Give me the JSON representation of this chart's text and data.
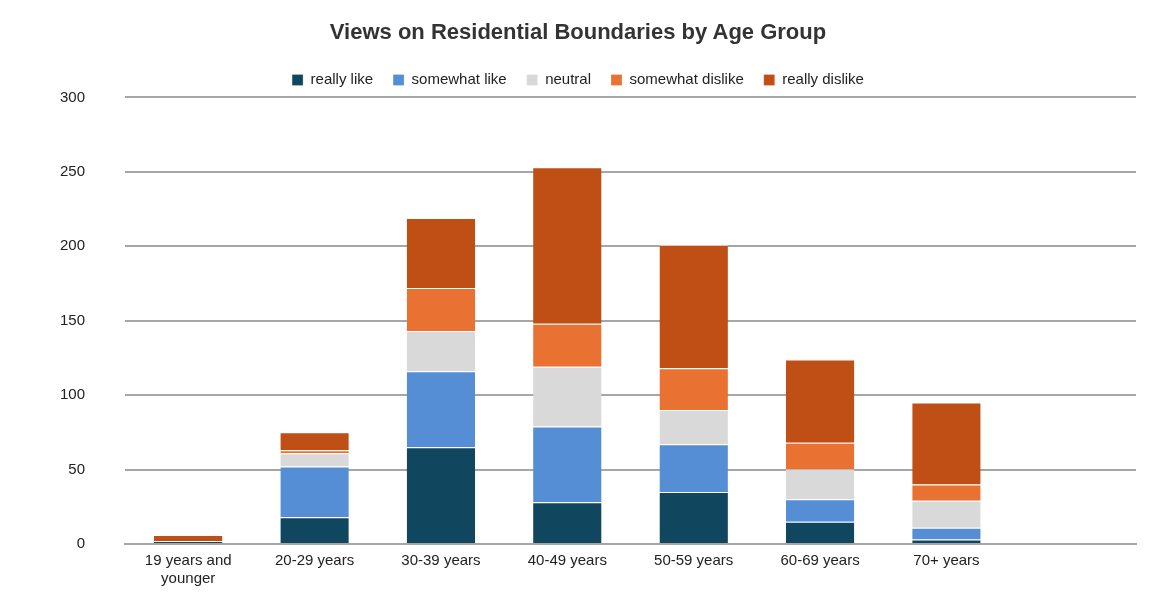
{
  "chart_data": {
    "type": "bar",
    "title": "Views on Residential Boundaries by Age Group",
    "stacked": true,
    "legend": "top",
    "grid": "y",
    "categories": [
      [
        "19 years and",
        "younger"
      ],
      "20-29 years",
      "30-39 years",
      "40-49 years",
      "50-59 years",
      "60-69 years",
      "70+ years",
      null
    ],
    "ylim": [
      0,
      300
    ],
    "yticks": [
      0,
      50,
      100,
      150,
      200,
      250,
      300
    ],
    "series": [
      {
        "name": "really like",
        "color": "#10475f",
        "values": [
          2,
          18,
          65,
          28,
          35,
          15,
          3,
          null
        ]
      },
      {
        "name": "somewhat like",
        "color": "#558ed5",
        "values": [
          0,
          34,
          51,
          51,
          32,
          15,
          8,
          null
        ]
      },
      {
        "name": "neutral",
        "color": "#d9d9d9",
        "values": [
          0,
          9,
          27,
          40,
          23,
          20,
          18,
          null
        ]
      },
      {
        "name": "somewhat dislike",
        "color": "#e97132",
        "values": [
          0,
          2,
          29,
          29,
          28,
          18,
          11,
          null
        ]
      },
      {
        "name": "really dislike",
        "color": "#c04f15",
        "values": [
          4,
          12,
          47,
          105,
          83,
          56,
          55,
          null
        ]
      }
    ]
  }
}
